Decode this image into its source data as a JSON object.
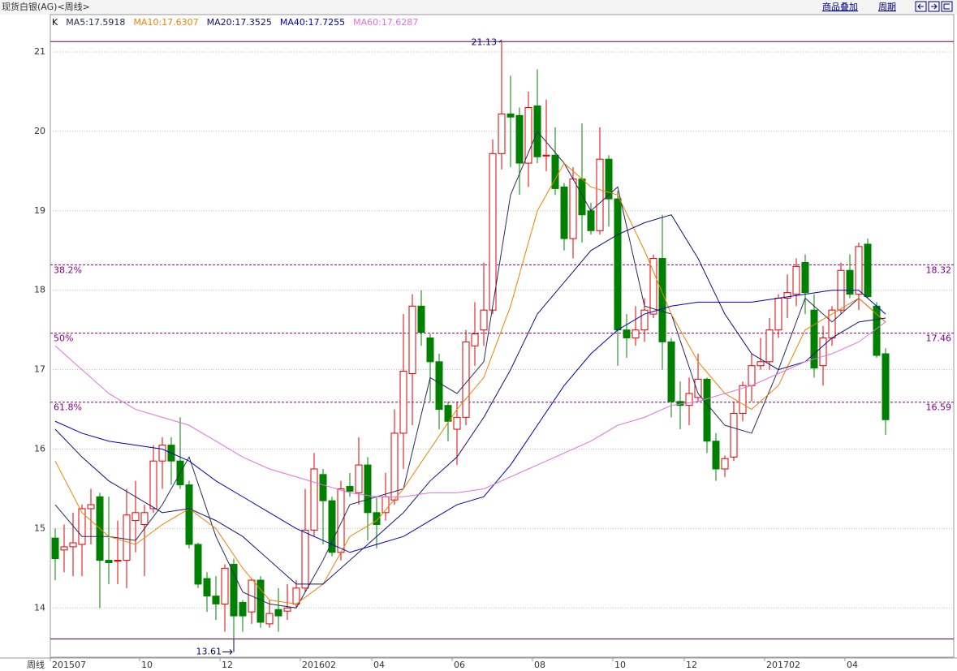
{
  "header": {
    "title": "现货白银(AG)<周线>",
    "buttons": [
      "商品叠加",
      "周期"
    ]
  },
  "chart_data": {
    "type": "candlestick",
    "legend_label": "K",
    "x_axis_label": "周线",
    "up_color": "#e00000",
    "down_color": "#008000",
    "ylim": [
      13.38,
      21.47
    ],
    "yticks": [
      14,
      15,
      16,
      17,
      18,
      19,
      20,
      21
    ],
    "grid": true,
    "x_labels": [
      {
        "value": 0,
        "label": "201507"
      },
      {
        "value": 10,
        "label": "10"
      },
      {
        "value": 19,
        "label": "12"
      },
      {
        "value": 28,
        "label": "201602"
      },
      {
        "value": 36,
        "label": "04"
      },
      {
        "value": 45,
        "label": "06"
      },
      {
        "value": 54,
        "label": "08"
      },
      {
        "value": 63,
        "label": "10"
      },
      {
        "value": 71,
        "label": "12"
      },
      {
        "value": 80,
        "label": "201702"
      },
      {
        "value": 89,
        "label": "04"
      }
    ],
    "candles": {
      "open": [
        14.88,
        14.73,
        14.77,
        14.8,
        15.25,
        15.4,
        14.6,
        14.6,
        14.6,
        15.1,
        15.05,
        15.25,
        15.85,
        16.05,
        15.85,
        15.55,
        14.8,
        14.37,
        14.15,
        14.05,
        14.55,
        14.07,
        13.95,
        14.35,
        13.8,
        13.98,
        13.96,
        14.05,
        14.25,
        14.98,
        15.68,
        15.35,
        14.7,
        15.53,
        15.45,
        15.8,
        15.2,
        15.2,
        15.36,
        16.2,
        16.95,
        17.8,
        17.4,
        17.1,
        16.55,
        16.25,
        16.4,
        17.3,
        17.5,
        17.75,
        19.72,
        20.22,
        20.2,
        19.6,
        20.32,
        19.7,
        19.7,
        19.3,
        18.65,
        19.4,
        19.0,
        18.75,
        19.65,
        19.15,
        17.5,
        17.4,
        17.5,
        17.7,
        18.4,
        17.35,
        16.6,
        16.55,
        16.65,
        16.88,
        16.1,
        15.75,
        15.9,
        16.45,
        16.8,
        17.05,
        17.1,
        17.5,
        17.9,
        17.95,
        18.35,
        17.75,
        17.05,
        17.4,
        17.75,
        18.25,
        17.95,
        18.58,
        17.8,
        17.2
      ],
      "high": [
        15.0,
        15.05,
        15.2,
        15.3,
        15.5,
        15.45,
        15.4,
        15.1,
        15.5,
        15.6,
        15.3,
        16.05,
        16.15,
        16.15,
        16.4,
        15.6,
        14.82,
        14.45,
        14.4,
        14.55,
        14.62,
        14.1,
        14.37,
        14.4,
        14.1,
        14.25,
        14.3,
        14.35,
        15.5,
        15.95,
        15.75,
        15.4,
        15.6,
        15.7,
        16.15,
        15.9,
        15.4,
        15.7,
        16.5,
        17.7,
        17.95,
        18.0,
        17.45,
        17.2,
        16.6,
        16.6,
        17.5,
        17.85,
        18.35,
        19.9,
        21.13,
        20.7,
        20.3,
        20.5,
        20.78,
        20.4,
        20.05,
        19.35,
        19.55,
        20.1,
        19.1,
        20.05,
        19.7,
        19.25,
        17.7,
        17.8,
        17.9,
        18.45,
        18.95,
        17.4,
        16.85,
        16.9,
        17.2,
        16.9,
        16.2,
        15.92,
        16.6,
        16.85,
        17.2,
        17.4,
        17.65,
        17.95,
        18.2,
        18.4,
        18.45,
        17.95,
        17.55,
        17.8,
        18.35,
        18.45,
        18.6,
        18.65,
        17.85,
        17.27
      ],
      "low": [
        14.35,
        14.45,
        14.4,
        14.4,
        14.8,
        14.0,
        14.3,
        14.3,
        14.25,
        14.7,
        14.4,
        15.2,
        15.5,
        15.55,
        15.5,
        14.75,
        14.25,
        13.95,
        13.85,
        13.7,
        13.61,
        13.7,
        13.8,
        13.75,
        13.75,
        13.7,
        13.85,
        14.0,
        14.2,
        14.9,
        14.8,
        14.65,
        14.6,
        15.4,
        15.3,
        14.85,
        14.75,
        15.1,
        15.3,
        15.75,
        16.3,
        17.3,
        16.6,
        16.25,
        16.1,
        15.8,
        16.3,
        17.05,
        17.3,
        17.7,
        19.52,
        19.55,
        19.2,
        19.3,
        19.6,
        19.5,
        19.2,
        18.5,
        18.4,
        18.6,
        18.7,
        18.7,
        18.8,
        17.05,
        17.15,
        17.3,
        17.35,
        17.65,
        17.0,
        16.4,
        16.25,
        16.3,
        16.6,
        15.95,
        15.6,
        15.65,
        15.85,
        16.35,
        16.6,
        17.0,
        17.0,
        17.4,
        17.65,
        17.8,
        17.7,
        16.9,
        16.8,
        17.3,
        17.7,
        17.9,
        17.75,
        17.9,
        17.15,
        16.18
      ],
      "close": [
        14.62,
        14.77,
        14.82,
        15.25,
        15.3,
        14.6,
        14.57,
        14.6,
        15.17,
        15.2,
        15.2,
        15.85,
        16.05,
        15.85,
        15.55,
        14.8,
        14.3,
        14.15,
        14.05,
        14.5,
        13.9,
        13.9,
        14.35,
        13.82,
        13.93,
        13.9,
        14.0,
        14.25,
        14.98,
        15.75,
        15.35,
        14.7,
        15.5,
        15.47,
        15.8,
        15.2,
        15.05,
        15.4,
        16.2,
        16.98,
        17.8,
        17.47,
        17.1,
        16.5,
        16.35,
        16.4,
        17.35,
        17.45,
        17.75,
        19.72,
        20.22,
        20.18,
        19.6,
        20.3,
        19.68,
        19.7,
        19.28,
        18.65,
        19.4,
        18.95,
        18.75,
        19.65,
        19.15,
        17.5,
        17.4,
        17.5,
        17.75,
        18.4,
        17.35,
        16.6,
        16.55,
        16.7,
        16.88,
        16.1,
        15.75,
        15.88,
        16.45,
        16.8,
        17.05,
        17.1,
        17.5,
        17.9,
        17.97,
        18.3,
        17.97,
        17.02,
        17.4,
        17.75,
        18.25,
        17.95,
        18.55,
        17.92,
        17.18,
        16.37
      ]
    },
    "ma_x": [
      0,
      3,
      6,
      9,
      12,
      15,
      18,
      21,
      24,
      27,
      30,
      33,
      36,
      39,
      42,
      45,
      48,
      51,
      54,
      57,
      60,
      63,
      66,
      69,
      72,
      75,
      78,
      81,
      84,
      87,
      90,
      93
    ],
    "series": [
      {
        "name": "MA5:17.5918",
        "color": "#2a2a5a",
        "values": [
          15.3,
          14.9,
          14.9,
          14.85,
          15.3,
          15.9,
          14.9,
          14.2,
          14.05,
          14.0,
          14.6,
          15.3,
          15.4,
          15.5,
          16.9,
          16.7,
          17.1,
          19.2,
          20.0,
          19.6,
          19.0,
          19.3,
          17.8,
          17.7,
          16.7,
          16.3,
          16.2,
          17.0,
          17.9,
          17.6,
          17.9,
          17.6
        ]
      },
      {
        "name": "MA10:17.6307",
        "color": "#f08000",
        "values": [
          15.85,
          15.2,
          14.9,
          14.8,
          15.05,
          15.25,
          15.0,
          14.5,
          14.1,
          14.05,
          14.3,
          14.9,
          15.1,
          15.5,
          16.0,
          16.5,
          16.9,
          17.8,
          19.0,
          19.6,
          19.3,
          19.2,
          18.5,
          17.7,
          17.1,
          16.7,
          16.5,
          16.8,
          17.5,
          17.7,
          17.9,
          17.6
        ]
      },
      {
        "name": "MA20:17.3525",
        "color": "#101078",
        "values": [
          16.25,
          15.9,
          15.6,
          15.4,
          15.2,
          15.25,
          15.1,
          14.9,
          14.6,
          14.3,
          14.3,
          14.6,
          14.9,
          15.2,
          15.6,
          15.9,
          16.4,
          17.0,
          17.7,
          18.1,
          18.5,
          18.7,
          18.85,
          18.95,
          18.4,
          17.7,
          17.2,
          17.0,
          17.1,
          17.4,
          17.6,
          17.65
        ]
      },
      {
        "name": "MA40:17.7255",
        "color": "#0000c0",
        "values": [
          16.35,
          16.2,
          16.1,
          16.05,
          16.0,
          15.85,
          15.6,
          15.4,
          15.2,
          15.0,
          14.85,
          14.7,
          14.8,
          14.9,
          15.1,
          15.3,
          15.4,
          15.8,
          16.3,
          16.8,
          17.2,
          17.5,
          17.7,
          17.8,
          17.85,
          17.85,
          17.85,
          17.9,
          17.95,
          18.0,
          18.0,
          17.7
        ]
      },
      {
        "name": "MA60:17.6287",
        "color": "#e070e0",
        "values": [
          17.3,
          17.0,
          16.7,
          16.5,
          16.4,
          16.3,
          16.1,
          15.9,
          15.75,
          15.65,
          15.55,
          15.45,
          15.4,
          15.4,
          15.45,
          15.45,
          15.5,
          15.65,
          15.8,
          15.95,
          16.1,
          16.3,
          16.4,
          16.55,
          16.6,
          16.7,
          16.8,
          16.95,
          17.1,
          17.2,
          17.35,
          17.6
        ]
      }
    ],
    "fib_levels": [
      {
        "label": "38.2%",
        "value": 18.32
      },
      {
        "label": "50%",
        "value": 17.46
      },
      {
        "label": "61.8%",
        "value": 16.59
      }
    ],
    "fib_color": "#800080"
  }
}
